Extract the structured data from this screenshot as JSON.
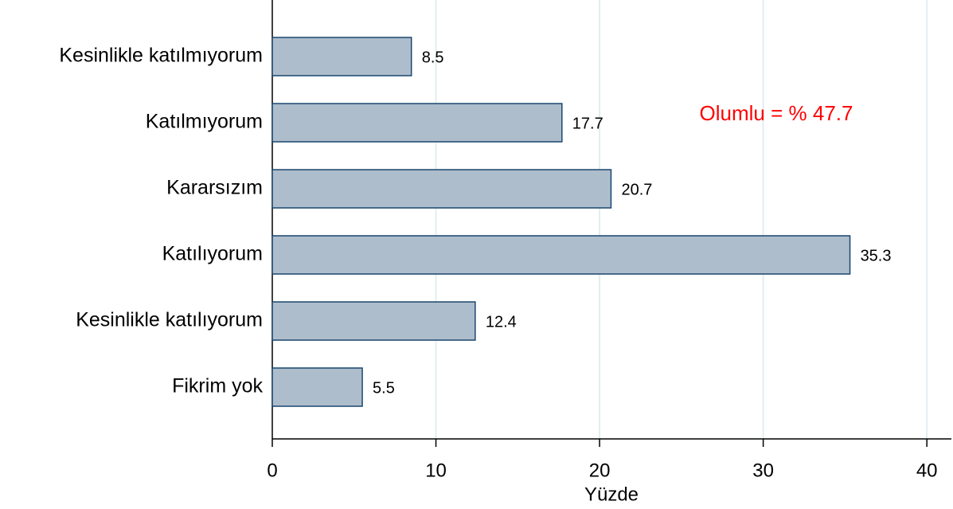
{
  "chart_data": {
    "type": "bar",
    "orientation": "horizontal",
    "categories": [
      "Kesinlikle katılmıyorum",
      "Katılmıyorum",
      "Kararsızım",
      "Katılıyorum",
      "Kesinlikle katılıyorum",
      "Fikrim yok"
    ],
    "values": [
      8.5,
      17.7,
      20.7,
      35.3,
      12.4,
      5.5
    ],
    "color": "#aebdcc",
    "edge_color": "#1a476f",
    "xlabel": "Yüzde",
    "xlim": [
      0,
      41.5
    ],
    "xticks": [
      0,
      10,
      20,
      30,
      40
    ],
    "grid": true,
    "annotation": "Olumlu = % 47.7",
    "annotation_color": "#ff0000"
  }
}
